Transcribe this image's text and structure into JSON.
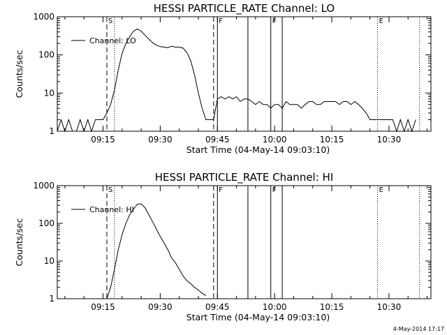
{
  "chart_data": [
    {
      "type": "line",
      "title": "HESSI PARTICLE_RATE Channel: LO",
      "xlabel": "Start Time (04-May-14 09:03:10)",
      "ylabel": "Counts/sec",
      "yscale": "log",
      "ylim": [
        1,
        1000
      ],
      "xlim": [
        "09:03",
        "10:41"
      ],
      "x_ticks": [
        "09:15",
        "09:30",
        "09:45",
        "10:00",
        "10:15",
        "10:30"
      ],
      "y_ticks": [
        "1",
        "10",
        "100",
        "1000"
      ],
      "grid": false,
      "legend": "top-left",
      "series": [
        {
          "name": "Channel: LO",
          "x": [
            "09:03",
            "09:04",
            "09:05",
            "09:06",
            "09:07",
            "09:08",
            "09:09",
            "09:10",
            "09:11",
            "09:12",
            "09:13",
            "09:14",
            "09:15",
            "09:16",
            "09:17",
            "09:18",
            "09:19",
            "09:20",
            "09:21",
            "09:22",
            "09:23",
            "09:24",
            "09:25",
            "09:26",
            "09:27",
            "09:28",
            "09:29",
            "09:30",
            "09:31",
            "09:32",
            "09:33",
            "09:34",
            "09:35",
            "09:36",
            "09:37",
            "09:38",
            "09:39",
            "09:40",
            "09:41",
            "09:42",
            "09:43",
            "09:44",
            "09:45",
            "09:46",
            "09:47",
            "09:48",
            "09:49",
            "09:50",
            "09:51",
            "09:52",
            "09:53",
            "09:54",
            "09:55",
            "09:56",
            "09:57",
            "09:58",
            "09:59",
            "10:00",
            "10:01",
            "10:02",
            "10:03",
            "10:04",
            "10:05",
            "10:06",
            "10:07",
            "10:08",
            "10:09",
            "10:10",
            "10:11",
            "10:12",
            "10:13",
            "10:14",
            "10:15",
            "10:16",
            "10:17",
            "10:18",
            "10:19",
            "10:20",
            "10:21",
            "10:22",
            "10:23",
            "10:24",
            "10:25",
            "10:26",
            "10:27",
            "10:28",
            "10:29",
            "10:30",
            "10:31",
            "10:32",
            "10:33",
            "10:34",
            "10:35",
            "10:36",
            "10:37"
          ],
          "y": [
            1,
            2,
            1,
            2,
            1,
            1,
            2,
            1,
            2,
            1,
            2,
            2,
            2,
            3,
            5,
            12,
            40,
            110,
            200,
            300,
            420,
            480,
            420,
            330,
            260,
            210,
            180,
            165,
            160,
            155,
            170,
            160,
            160,
            150,
            115,
            70,
            30,
            10,
            4,
            2,
            2,
            2,
            7,
            8,
            7,
            8,
            7,
            8,
            6,
            7,
            7,
            6,
            5,
            6,
            5,
            5,
            4,
            5,
            5,
            4,
            6,
            5,
            5,
            5,
            4,
            5,
            6,
            6,
            5,
            5,
            6,
            6,
            6,
            6,
            5,
            6,
            6,
            5,
            6,
            5,
            4,
            3,
            2,
            2,
            2,
            2,
            2,
            2,
            2,
            1,
            2,
            1,
            2,
            1,
            2
          ]
        }
      ],
      "annotations": [
        "S",
        "F",
        "F",
        "E"
      ]
    },
    {
      "type": "line",
      "title": "HESSI PARTICLE_RATE Channel: HI",
      "xlabel": "Start Time (04-May-14 09:03:10)",
      "ylabel": "Counts/sec",
      "yscale": "log",
      "ylim": [
        1,
        1000
      ],
      "xlim": [
        "09:03",
        "10:41"
      ],
      "x_ticks": [
        "09:15",
        "09:30",
        "09:45",
        "10:00",
        "10:15",
        "10:30"
      ],
      "y_ticks": [
        "1",
        "10",
        "100",
        "1000"
      ],
      "grid": false,
      "legend": "top-left",
      "series": [
        {
          "name": "Channel: HI",
          "x": [
            "09:16",
            "09:17",
            "09:18",
            "09:19",
            "09:20",
            "09:21",
            "09:22",
            "09:23",
            "09:24",
            "09:25",
            "09:26",
            "09:27",
            "09:28",
            "09:29",
            "09:30",
            "09:31",
            "09:32",
            "09:33",
            "09:34",
            "09:35",
            "09:36",
            "09:37",
            "09:38",
            "09:39",
            "09:40",
            "09:41",
            "09:42"
          ],
          "y": [
            1,
            2,
            6,
            20,
            50,
            100,
            170,
            240,
            320,
            330,
            260,
            170,
            110,
            70,
            45,
            30,
            20,
            12,
            9,
            6,
            4,
            3,
            2.5,
            2,
            1.7,
            1.4,
            1.2
          ]
        }
      ],
      "annotations": [
        "S",
        "F",
        "F",
        "E"
      ]
    }
  ],
  "footer": {
    "timestamp": "4-May-2014 17:17"
  }
}
